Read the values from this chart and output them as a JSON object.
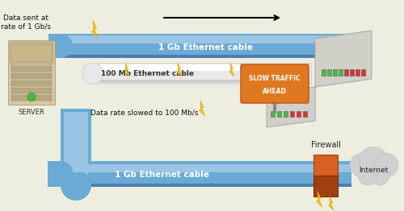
{
  "bg_color": "#eeeee0",
  "cable_blue": "#6aaad4",
  "cable_blue_light": "#9cc4e4",
  "cable_blue_dark": "#4a7fb5",
  "cable_gray": "#e8e8e8",
  "cable_gray_dark": "#cccccc",
  "hub_color": "#d0d0c8",
  "hub_dark": "#b0b0a8",
  "sign_color": "#e07820",
  "sign_dark": "#c05010",
  "fw_color": "#d86020",
  "fw_dark": "#a04010",
  "cloud_color": "#d0d0d0",
  "cloud_dark": "#b8b8b8",
  "lightning_fill": "#f8d000",
  "lightning_edge": "#e0a000",
  "text_data_sent": "Data sent at\nrate of 1 Gb/s",
  "text_cable1": "1 Gb Ethernet cable",
  "text_cable2": "100 Mb Ethernet cable",
  "text_cable3": "1 Gb Ethernet cable",
  "text_slowed": "Data rate slowed to 100 Mb/s",
  "text_server": "SERVER",
  "text_sign1": "SLOW TRAFFIC",
  "text_sign2": "AHEAD",
  "text_firewall": "Firewall",
  "text_internet": "Internet",
  "srv_color1": "#d8c8a0",
  "srv_color2": "#c8b890",
  "srv_color3": "#b8a880"
}
